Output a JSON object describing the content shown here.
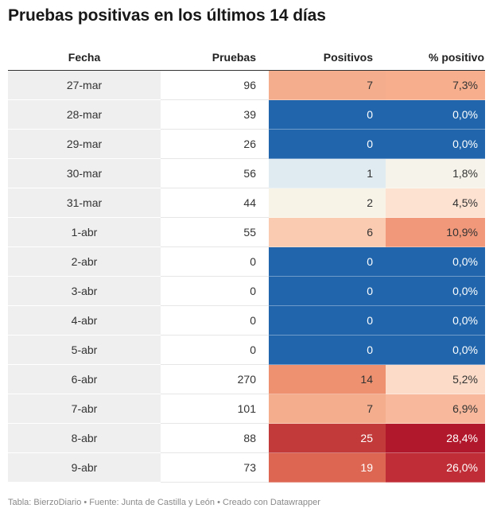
{
  "title": "Pruebas positivas en los últimos 14 días",
  "footer": "Tabla: BierzoDiario • Fuente: Junta de Castilla y León • Creado con Datawrapper",
  "chart_data": {
    "type": "table",
    "columns": [
      "Fecha",
      "Pruebas",
      "Positivos",
      "% positivo"
    ],
    "rows": [
      {
        "fecha": "27-mar",
        "pruebas": "96",
        "positivos": "7",
        "pct": "7,3%",
        "pos_color": "#f4ae8e",
        "pct_color": "#f6ae8d"
      },
      {
        "fecha": "28-mar",
        "pruebas": "39",
        "positivos": "0",
        "pct": "0,0%",
        "pos_color": "#2166ac",
        "pct_color": "#2166ac"
      },
      {
        "fecha": "29-mar",
        "pruebas": "26",
        "positivos": "0",
        "pct": "0,0%",
        "pos_color": "#2166ac",
        "pct_color": "#2166ac"
      },
      {
        "fecha": "30-mar",
        "pruebas": "56",
        "positivos": "1",
        "pct": "1,8%",
        "pos_color": "#dfebf1",
        "pct_color": "#f6f4ea"
      },
      {
        "fecha": "31-mar",
        "pruebas": "44",
        "positivos": "2",
        "pct": "4,5%",
        "pos_color": "#f8f3e7",
        "pct_color": "#fde2d1"
      },
      {
        "fecha": "1-abr",
        "pruebas": "55",
        "positivos": "6",
        "pct": "10,9%",
        "pos_color": "#fbcbb1",
        "pct_color": "#f1987a"
      },
      {
        "fecha": "2-abr",
        "pruebas": "0",
        "positivos": "0",
        "pct": "0,0%",
        "pos_color": "#2166ac",
        "pct_color": "#2166ac"
      },
      {
        "fecha": "3-abr",
        "pruebas": "0",
        "positivos": "0",
        "pct": "0,0%",
        "pos_color": "#2166ac",
        "pct_color": "#2166ac"
      },
      {
        "fecha": "4-abr",
        "pruebas": "0",
        "positivos": "0",
        "pct": "0,0%",
        "pos_color": "#2166ac",
        "pct_color": "#2166ac"
      },
      {
        "fecha": "5-abr",
        "pruebas": "0",
        "positivos": "0",
        "pct": "0,0%",
        "pos_color": "#2166ac",
        "pct_color": "#2166ac"
      },
      {
        "fecha": "6-abr",
        "pruebas": "270",
        "positivos": "14",
        "pct": "5,2%",
        "pos_color": "#ee9170",
        "pct_color": "#fcdcc8"
      },
      {
        "fecha": "7-abr",
        "pruebas": "101",
        "positivos": "7",
        "pct": "6,9%",
        "pos_color": "#f4ae8e",
        "pct_color": "#f7b89b"
      },
      {
        "fecha": "8-abr",
        "pruebas": "88",
        "positivos": "25",
        "pct": "28,4%",
        "pos_color": "#c23b3a",
        "pct_color": "#b2182b"
      },
      {
        "fecha": "9-abr",
        "pruebas": "73",
        "positivos": "19",
        "pct": "26,0%",
        "pos_color": "#dc6651",
        "pct_color": "#c02d36"
      }
    ]
  }
}
